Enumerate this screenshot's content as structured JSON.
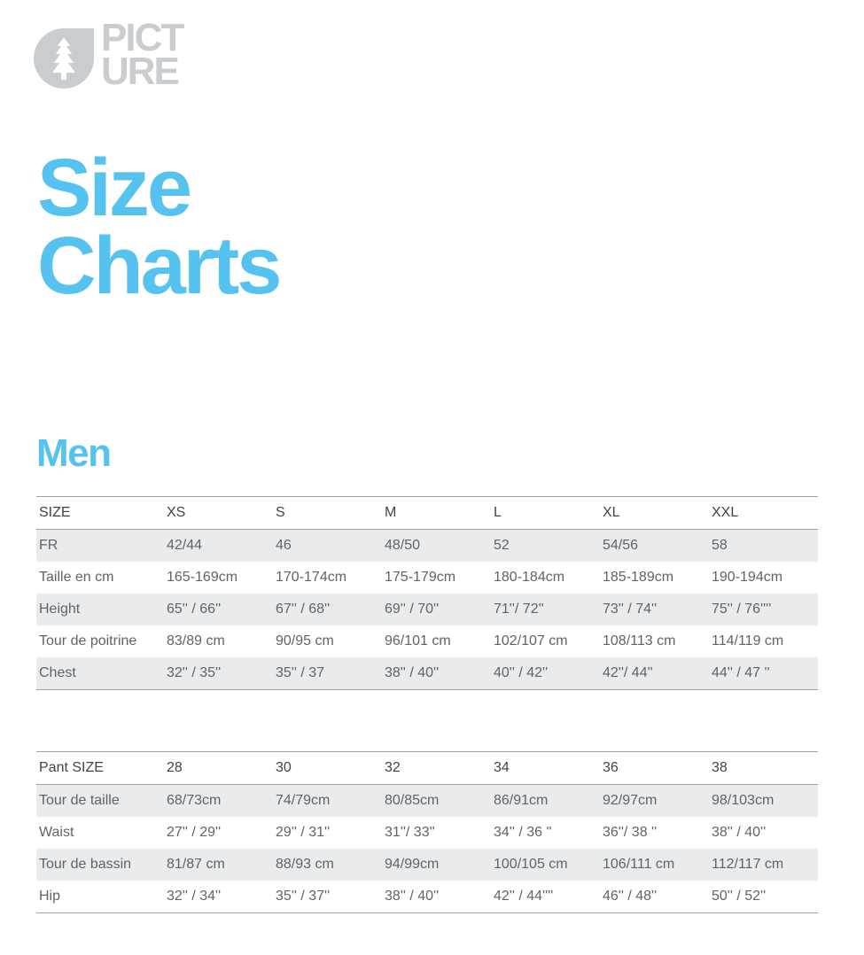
{
  "logo": {
    "line1": "PICT",
    "line2": "URE"
  },
  "title": {
    "line1": "Size",
    "line2": "Charts"
  },
  "section": {
    "title": "Men"
  },
  "men_table": {
    "headers": [
      "SIZE",
      "XS",
      "S",
      "M",
      "L",
      "XL",
      "XXL"
    ],
    "rows": [
      [
        "FR",
        "42/44",
        "46",
        "48/50",
        "52",
        "54/56",
        "58"
      ],
      [
        "Taille en cm",
        "165-169cm",
        "170-174cm",
        "175-179cm",
        "180-184cm",
        "185-189cm",
        "190-194cm"
      ],
      [
        "Height",
        "65'' / 66''",
        "67'' / 68''",
        "69'' / 70''",
        "71''/ 72''",
        "73'' / 74''",
        "75'' / 76''''"
      ],
      [
        "Tour de poitrine",
        "83/89 cm",
        "90/95 cm",
        "96/101 cm",
        "102/107 cm",
        "108/113 cm",
        "114/119 cm"
      ],
      [
        "Chest",
        "32'' / 35''",
        "35'' / 37",
        "38'' / 40''",
        "40'' / 42''",
        "42''/ 44''",
        "44'' / 47 ''"
      ]
    ]
  },
  "pant_table": {
    "headers": [
      "Pant SIZE",
      "28",
      "30",
      "32",
      "34",
      "36",
      "38"
    ],
    "rows": [
      [
        "Tour de taille",
        "68/73cm",
        "74/79cm",
        "80/85cm",
        "86/91cm",
        "92/97cm",
        "98/103cm"
      ],
      [
        "Waist",
        "27'' / 29''",
        "29'' / 31''",
        "31''/ 33''",
        "34'' / 36 ''",
        "36''/ 38 ''",
        "38'' / 40''"
      ],
      [
        "Tour de bassin",
        "81/87 cm",
        "88/93 cm",
        "94/99cm",
        "100/105 cm",
        "106/111 cm",
        "112/117 cm"
      ],
      [
        "Hip",
        "32'' / 34''",
        "35'' / 37''",
        "38'' / 40''",
        "42'' / 44''''",
        "46'' / 48''",
        "50'' / 52''"
      ]
    ]
  },
  "colors": {
    "accent": "#55c2f0",
    "logo": "#c9cdcf",
    "row_stripe": "#e9ebec",
    "rule": "#9aa0a4"
  }
}
